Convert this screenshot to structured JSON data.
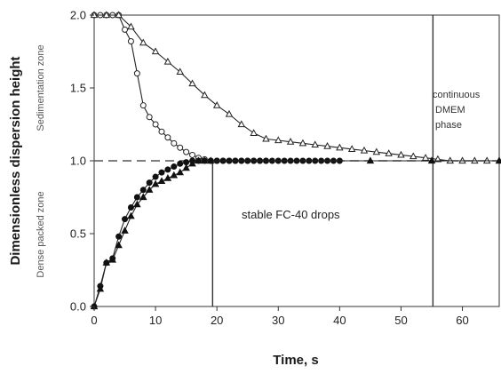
{
  "chart_data": {
    "type": "line",
    "title": "",
    "xlabel": "Time, s",
    "ylabel": "Dimensionless dispersion height",
    "xlim": [
      0,
      66
    ],
    "ylim": [
      0,
      2.0
    ],
    "xticks": [
      0,
      10,
      20,
      30,
      40,
      50,
      60
    ],
    "yticks": [
      0.0,
      0.5,
      1.0,
      1.5,
      2.0
    ],
    "xtick_labels": [
      "0",
      "10",
      "20",
      "30",
      "40",
      "50",
      "60"
    ],
    "ytick_labels": [
      "0.0",
      "0.5",
      "1.0",
      "1.5",
      "2.0"
    ],
    "zone_labels": {
      "upper": "Sedimentation zone",
      "lower": "Dense packed zone"
    },
    "annotations": {
      "drops": "stable FC-40 drops",
      "phase_lines": [
        "continuous",
        "DMEM",
        "phase"
      ]
    },
    "reference_lines": {
      "horizontal_dashed_y": 1.0,
      "vertical_x": [
        19.3,
        55.2
      ]
    },
    "series": [
      {
        "marker": "open-circle",
        "x": [
          0,
          1,
          2,
          3,
          4,
          5,
          6,
          7,
          8,
          9,
          10,
          11,
          12,
          13,
          14,
          15,
          16,
          17,
          18,
          19,
          20,
          21,
          22,
          23,
          24,
          25,
          26,
          27,
          28
        ],
        "y": [
          2.0,
          2.0,
          2.0,
          2.0,
          2.0,
          1.9,
          1.82,
          1.6,
          1.38,
          1.3,
          1.25,
          1.2,
          1.16,
          1.12,
          1.09,
          1.06,
          1.04,
          1.02,
          1.01,
          1.0,
          1.0,
          1.0,
          1.0,
          1.0,
          1.0,
          1.0,
          1.0,
          1.0,
          1.0
        ]
      },
      {
        "marker": "open-triangle",
        "x": [
          0,
          2,
          4,
          6,
          8,
          10,
          12,
          14,
          16,
          18,
          20,
          22,
          24,
          26,
          28,
          30,
          32,
          34,
          36,
          38,
          40,
          42,
          44,
          46,
          48,
          50,
          52,
          54,
          56,
          58,
          60,
          62,
          64,
          66
        ],
        "y": [
          2.0,
          2.0,
          2.0,
          1.92,
          1.81,
          1.75,
          1.68,
          1.61,
          1.53,
          1.45,
          1.38,
          1.32,
          1.25,
          1.19,
          1.15,
          1.14,
          1.13,
          1.12,
          1.11,
          1.1,
          1.09,
          1.08,
          1.07,
          1.06,
          1.05,
          1.04,
          1.03,
          1.02,
          1.01,
          1.0,
          1.0,
          1.0,
          1.0,
          1.0
        ]
      },
      {
        "marker": "filled-circle",
        "x": [
          0,
          1,
          2,
          3,
          4,
          5,
          6,
          7,
          8,
          9,
          10,
          11,
          12,
          13,
          14,
          15,
          16,
          17,
          18,
          19,
          20,
          21,
          22,
          23,
          24,
          25,
          26,
          27,
          28,
          29,
          30,
          31,
          32,
          33,
          34,
          35,
          36,
          37,
          38,
          39,
          40
        ],
        "y": [
          0.0,
          0.14,
          0.3,
          0.33,
          0.48,
          0.6,
          0.68,
          0.75,
          0.8,
          0.85,
          0.89,
          0.92,
          0.94,
          0.96,
          0.98,
          0.99,
          1.0,
          1.0,
          1.0,
          1.0,
          1.0,
          1.0,
          1.0,
          1.0,
          1.0,
          1.0,
          1.0,
          1.0,
          1.0,
          1.0,
          1.0,
          1.0,
          1.0,
          1.0,
          1.0,
          1.0,
          1.0,
          1.0,
          1.0,
          1.0,
          1.0
        ]
      },
      {
        "marker": "filled-triangle",
        "x": [
          0,
          1,
          2,
          3,
          4,
          5,
          6,
          7,
          8,
          9,
          10,
          11,
          12,
          13,
          14,
          15,
          16,
          17,
          18,
          19,
          45,
          55,
          66
        ],
        "y": [
          0.0,
          0.12,
          0.3,
          0.32,
          0.42,
          0.52,
          0.62,
          0.7,
          0.75,
          0.8,
          0.84,
          0.86,
          0.88,
          0.9,
          0.92,
          0.95,
          0.98,
          1.0,
          1.0,
          1.0,
          1.0,
          1.0,
          1.0
        ]
      }
    ]
  }
}
